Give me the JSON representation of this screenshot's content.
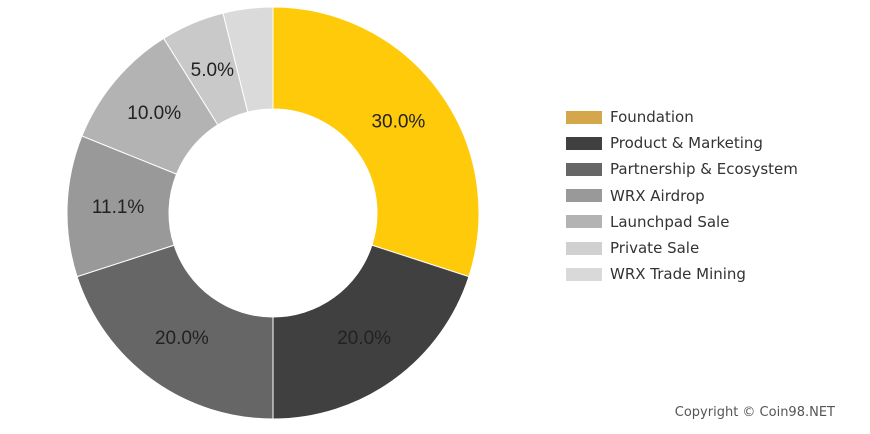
{
  "chart_data": {
    "type": "pie",
    "donut": true,
    "title": "",
    "slices": [
      {
        "label": "Foundation",
        "value": 30.0,
        "display": "30.0%",
        "color": "#FFCA0A",
        "legend_color": "#D4A84A"
      },
      {
        "label": "Product & Marketing",
        "value": 20.0,
        "display": "20.0%",
        "color": "#404040",
        "legend_color": "#404040"
      },
      {
        "label": "Partnership & Ecosystem",
        "value": 20.0,
        "display": "20.0%",
        "color": "#666666",
        "legend_color": "#666666"
      },
      {
        "label": "WRX Airdrop",
        "value": 11.1,
        "display": "11.1%",
        "color": "#999999",
        "legend_color": "#999999"
      },
      {
        "label": "Launchpad Sale",
        "value": 10.0,
        "display": "10.0%",
        "color": "#B3B3B3",
        "legend_color": "#B3B3B3"
      },
      {
        "label": "Private Sale",
        "value": 5.0,
        "display": "5.0%",
        "color": "#C9C9C9",
        "legend_color": "#D0D0D0"
      },
      {
        "label": "WRX Trade Mining",
        "value": 3.9,
        "display": "",
        "color": "#DADADA",
        "legend_color": "#D9D9D9"
      }
    ],
    "legend_position": "right"
  },
  "footer": {
    "copyright": "Copyright © Coin98.NET"
  }
}
